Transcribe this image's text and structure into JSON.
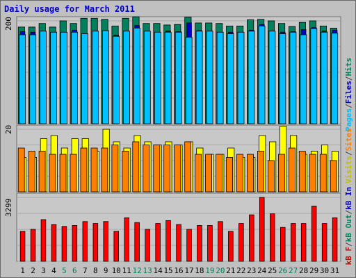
{
  "chart_title": "Daily usage for March 2011",
  "panels": [
    {
      "key": "top",
      "ymax_label": "200",
      "legend": [
        {
          "text": "Pages",
          "color": "#00c0ff"
        },
        {
          "text": "/",
          "color": "#404040"
        },
        {
          "text": "Files",
          "color": "#0000cc"
        },
        {
          "text": "/",
          "color": "#404040"
        },
        {
          "text": "Hits",
          "color": "#00805c"
        }
      ]
    },
    {
      "key": "mid",
      "ymax_label": "20",
      "legend": [
        {
          "text": "Visits",
          "color": "#c0c000"
        },
        {
          "text": "/",
          "color": "#404040"
        },
        {
          "text": "Sites",
          "color": "#ff8000"
        }
      ]
    },
    {
      "key": "bot",
      "ymax_label": "3299",
      "legend": [
        {
          "text": "kB In",
          "color": "#0000cc"
        },
        {
          "text": "/",
          "color": "#404040"
        },
        {
          "text": "kB Out",
          "color": "#00805c"
        },
        {
          "text": "/",
          "color": "#404040"
        },
        {
          "text": "kB F",
          "color": "#cc0000"
        }
      ]
    }
  ],
  "chart_data": {
    "type": "bar",
    "title": "Daily usage for March 2011",
    "categories": [
      "1",
      "2",
      "3",
      "4",
      "5",
      "6",
      "7",
      "8",
      "9",
      "10",
      "11",
      "12",
      "13",
      "14",
      "15",
      "16",
      "17",
      "18",
      "19",
      "20",
      "21",
      "22",
      "23",
      "24",
      "25",
      "26",
      "27",
      "28",
      "29",
      "30",
      "31"
    ],
    "weekend_days": [
      "5",
      "6",
      "12",
      "13",
      "19",
      "20",
      "26",
      "27"
    ],
    "weekend_color": "#00805c",
    "weekday_color": "#000000",
    "panels": [
      {
        "name": "top",
        "ylim": [
          0,
          200
        ],
        "series": [
          {
            "name": "Hits",
            "color": "#00805c",
            "values": [
              188,
              188,
              195,
              188,
              200,
              195,
              205,
              205,
              203,
              190,
              205,
              208,
              195,
              195,
              192,
              193,
              207,
              196,
              196,
              195,
              190,
              190,
              202,
              203,
              200,
              195,
              189,
              197,
              200,
              190,
              186
            ]
          },
          {
            "name": "Files",
            "color": "#0000cc",
            "values": [
              179,
              178,
              180,
              178,
              178,
              182,
              175,
              180,
              181,
              172,
              180,
              191,
              180,
              178,
              180,
              179,
              196,
              181,
              180,
              178,
              178,
              178,
              182,
              193,
              180,
              178,
              179,
              183,
              187,
              180,
              182
            ]
          },
          {
            "name": "Pages",
            "color": "#00c0ff",
            "values": [
              173,
              173,
              180,
              178,
              178,
              178,
              175,
              180,
              181,
              170,
              180,
              186,
              180,
              178,
              178,
              178,
              168,
              180,
              180,
              178,
              175,
              178,
              180,
              190,
              180,
              175,
              178,
              173,
              185,
              178,
              176
            ]
          }
        ]
      },
      {
        "name": "mid",
        "ylim": [
          0,
          20
        ],
        "series": [
          {
            "name": "Visits",
            "color": "#ffff00",
            "values": [
              11,
              11,
              17,
              18,
              14,
              17,
              17,
              13,
              20,
              16,
              14,
              18,
              16,
              15,
              16,
              15,
              16,
              14,
              12,
              12,
              14,
              11,
              11,
              18,
              16,
              21,
              18,
              12,
              13,
              15,
              13
            ]
          },
          {
            "name": "Sites",
            "color": "#ff8000",
            "values": [
              14,
              13,
              13,
              12,
              12,
              12,
              14,
              14,
              14,
              15,
              13,
              16,
              15,
              15,
              15,
              15,
              16,
              12,
              12,
              12,
              11,
              12,
              12,
              13,
              10,
              12,
              14,
              13,
              12,
              12,
              10
            ]
          }
        ]
      },
      {
        "name": "bot",
        "ylim": [
          0,
          3299
        ],
        "series": [
          {
            "name": "kB F",
            "color": "#ff0000",
            "values": [
              1550,
              1650,
              2150,
              1900,
              1800,
              1850,
              2050,
              1950,
              2050,
              1550,
              2250,
              2000,
              1650,
              1950,
              2100,
              1900,
              1650,
              1850,
              1850,
              2050,
              1550,
              1950,
              2400,
              3299,
              2450,
              1750,
              1950,
              1950,
              2850,
              1950,
              2250
            ]
          }
        ]
      }
    ]
  }
}
